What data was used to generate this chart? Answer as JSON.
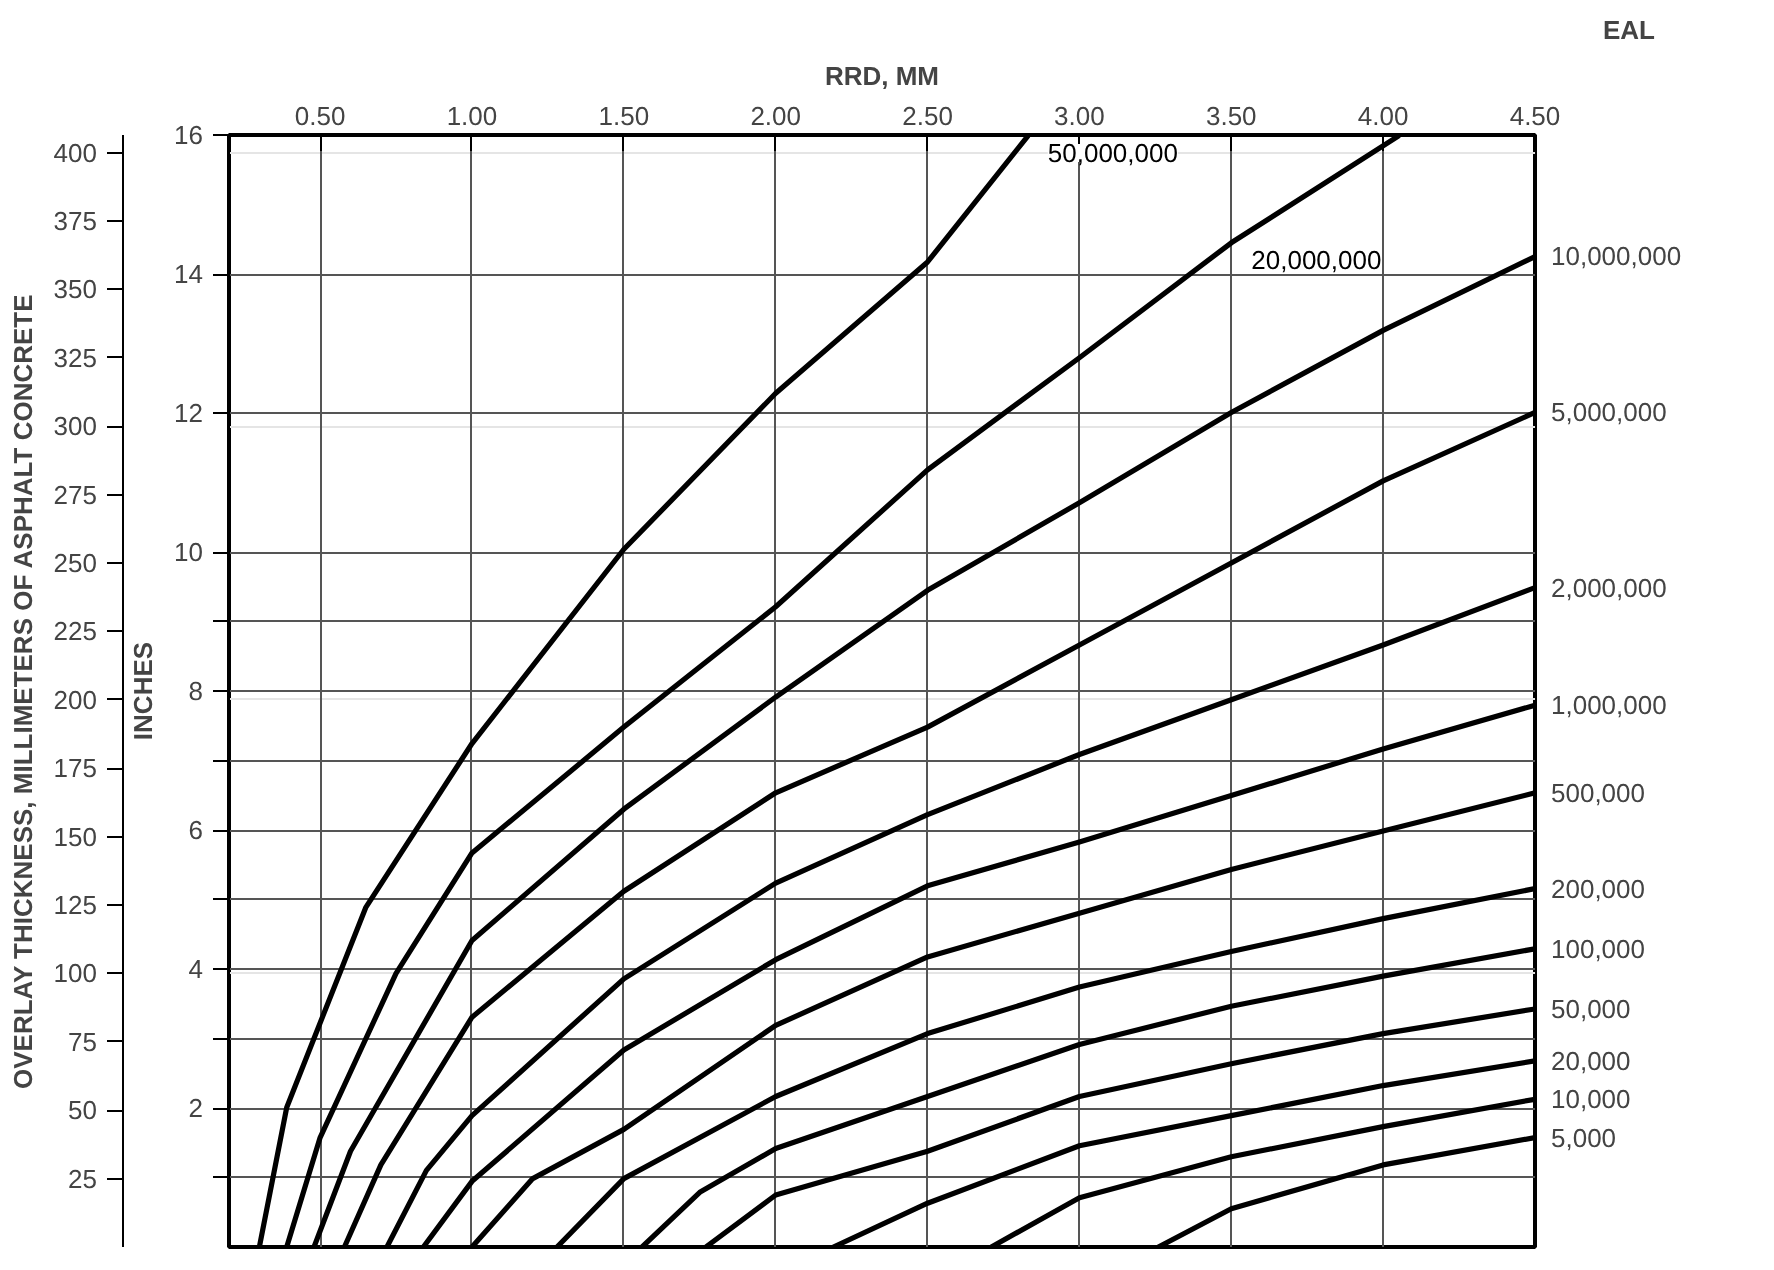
{
  "chart_data": {
    "type": "line",
    "xlabel": "RRD, MM",
    "ylabel": "OVERLAY THICKNESS, MILLIMETERS OF ASPHALT CONCRETE",
    "y2label": "INCHES",
    "legend_title": "EAL",
    "xlim": [
      0.2,
      4.5
    ],
    "xticks": [
      {
        "value": 0.5,
        "label": "0.50"
      },
      {
        "value": 1.0,
        "label": "1.00"
      },
      {
        "value": 1.5,
        "label": "1.50"
      },
      {
        "value": 2.0,
        "label": "2.00"
      },
      {
        "value": 2.5,
        "label": "2.50"
      },
      {
        "value": 3.0,
        "label": "3.00"
      },
      {
        "value": 3.5,
        "label": "3.50"
      },
      {
        "value": 4.0,
        "label": "4.00"
      },
      {
        "value": 4.5,
        "label": "4.50"
      }
    ],
    "ylim": [
      0,
      406.4
    ],
    "yticks": [
      25,
      50,
      75,
      100,
      125,
      150,
      175,
      200,
      225,
      250,
      275,
      300,
      325,
      350,
      375,
      400
    ],
    "y2lim": [
      0,
      16
    ],
    "y2ticks": [
      {
        "value": 1,
        "label": null
      },
      2,
      {
        "value": 3,
        "label": null
      },
      4,
      {
        "value": 5,
        "label": null
      },
      6,
      {
        "value": 7,
        "label": null
      },
      8,
      {
        "value": 9,
        "label": null
      },
      10,
      12,
      14,
      16
    ],
    "grid": true,
    "series": [
      {
        "name": "50,000,000",
        "color": "#000000",
        "x": [
          0.3,
          0.39,
          0.65,
          1.0,
          1.5,
          2.0,
          2.5,
          2.83
        ],
        "values": [
          0,
          51,
          124,
          184,
          255,
          312,
          360,
          406
        ]
      },
      {
        "name": "20,000,000",
        "color": "#000000",
        "x": [
          0.39,
          0.5,
          0.75,
          1.0,
          1.5,
          2.0,
          2.5,
          3.0,
          3.5,
          4.05
        ],
        "values": [
          0,
          40,
          100,
          144,
          190,
          234,
          284,
          325,
          367,
          406
        ]
      },
      {
        "name": "10,000,000",
        "color": "#000000",
        "x": [
          0.48,
          0.6,
          1.0,
          1.5,
          2.0,
          2.5,
          3.0,
          3.5,
          4.0,
          4.5
        ],
        "values": [
          0,
          35,
          112,
          160,
          201,
          240,
          272,
          305,
          335,
          362
        ]
      },
      {
        "name": "5,000,000",
        "color": "#000000",
        "x": [
          0.58,
          0.7,
          1.0,
          1.5,
          2.0,
          2.5,
          3.0,
          3.5,
          4.0,
          4.5
        ],
        "values": [
          0,
          30,
          84,
          130,
          166,
          190,
          220,
          250,
          280,
          305
        ]
      },
      {
        "name": "2,000,000",
        "color": "#000000",
        "x": [
          0.72,
          0.85,
          1.0,
          1.5,
          2.0,
          2.5,
          3.0,
          3.5,
          4.0,
          4.5
        ],
        "values": [
          0,
          28,
          48,
          98,
          133,
          158,
          180,
          200,
          220,
          241
        ]
      },
      {
        "name": "1,000,000",
        "color": "#000000",
        "x": [
          0.84,
          1.0,
          1.5,
          2.0,
          2.5,
          3.0,
          3.5,
          4.0,
          4.5
        ],
        "values": [
          0,
          24,
          72,
          105,
          132,
          148,
          165,
          182,
          198
        ]
      },
      {
        "name": "500,000",
        "color": "#000000",
        "x": [
          1.0,
          1.2,
          1.5,
          2.0,
          2.5,
          3.0,
          3.5,
          4.0,
          4.5
        ],
        "values": [
          0,
          25,
          43,
          81,
          106,
          122,
          138,
          152,
          166
        ]
      },
      {
        "name": "200,000",
        "color": "#000000",
        "x": [
          1.28,
          1.5,
          2.0,
          2.5,
          3.0,
          3.5,
          4.0,
          4.5
        ],
        "values": [
          0,
          25,
          55,
          78,
          95,
          108,
          120,
          131
        ]
      },
      {
        "name": "100,000",
        "color": "#000000",
        "x": [
          1.56,
          1.75,
          2.0,
          2.5,
          3.0,
          3.5,
          4.0,
          4.5
        ],
        "values": [
          0,
          20,
          36,
          55,
          74,
          88,
          99,
          109
        ]
      },
      {
        "name": "50,000",
        "color": "#000000",
        "x": [
          1.77,
          2.0,
          2.5,
          3.0,
          3.5,
          4.0,
          4.5
        ],
        "values": [
          0,
          19,
          35,
          55,
          67,
          78,
          87
        ]
      },
      {
        "name": "20,000",
        "color": "#000000",
        "x": [
          2.19,
          2.5,
          3.0,
          3.5,
          4.0,
          4.5
        ],
        "values": [
          0,
          16,
          37,
          48,
          59,
          68
        ]
      },
      {
        "name": "10,000",
        "color": "#000000",
        "x": [
          2.71,
          3.0,
          3.5,
          4.0,
          4.5
        ],
        "values": [
          0,
          18,
          33,
          44,
          54
        ]
      },
      {
        "name": "5,000",
        "color": "#000000",
        "x": [
          3.26,
          3.5,
          4.0,
          4.5
        ],
        "values": [
          0,
          14,
          30,
          40
        ]
      }
    ]
  }
}
